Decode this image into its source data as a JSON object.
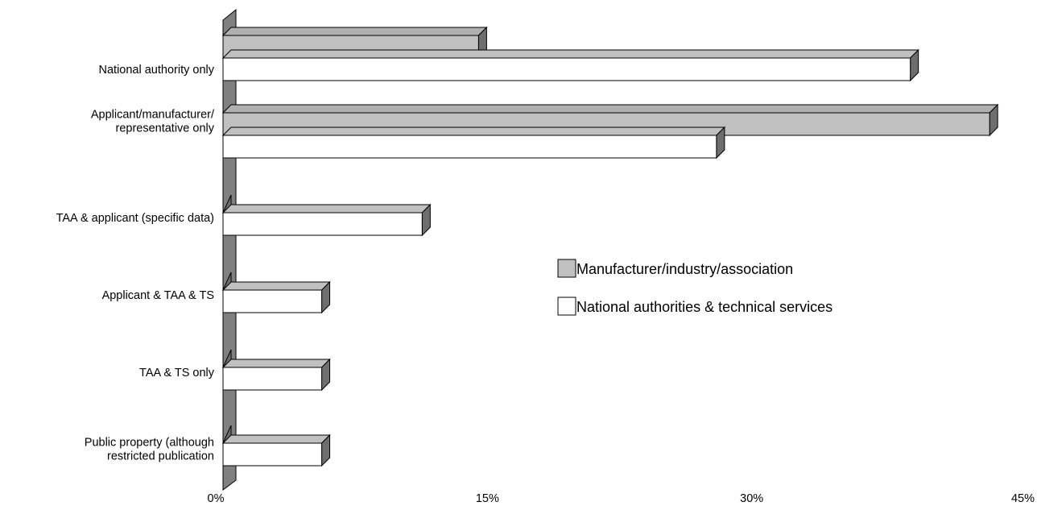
{
  "chart_data": {
    "type": "bar",
    "orientation": "horizontal",
    "style": "3d",
    "categories": [
      [
        "National authority only"
      ],
      [
        "Applicant/manufacturer/",
        "representative only"
      ],
      [
        "TAA & applicant (specific data)"
      ],
      [
        "Applicant & TAA & TS"
      ],
      [
        "TAA & TS only"
      ],
      [
        "Public property (although",
        "restricted publication"
      ]
    ],
    "series": [
      {
        "name": "Manufacturer/industry/association",
        "color": "#c0c0c0",
        "values": [
          14.5,
          43.5,
          0,
          0,
          0,
          0
        ]
      },
      {
        "name": "National authorities & technical services",
        "color": "#ffffff",
        "values": [
          39,
          28,
          11.3,
          5.6,
          5.6,
          5.6
        ]
      }
    ],
    "xlim": [
      0,
      45
    ],
    "xticks": [
      "0%",
      "15%",
      "30%",
      "45%"
    ],
    "xtick_values": [
      0,
      15,
      30,
      45
    ],
    "legend_position": "right",
    "grid": false
  }
}
